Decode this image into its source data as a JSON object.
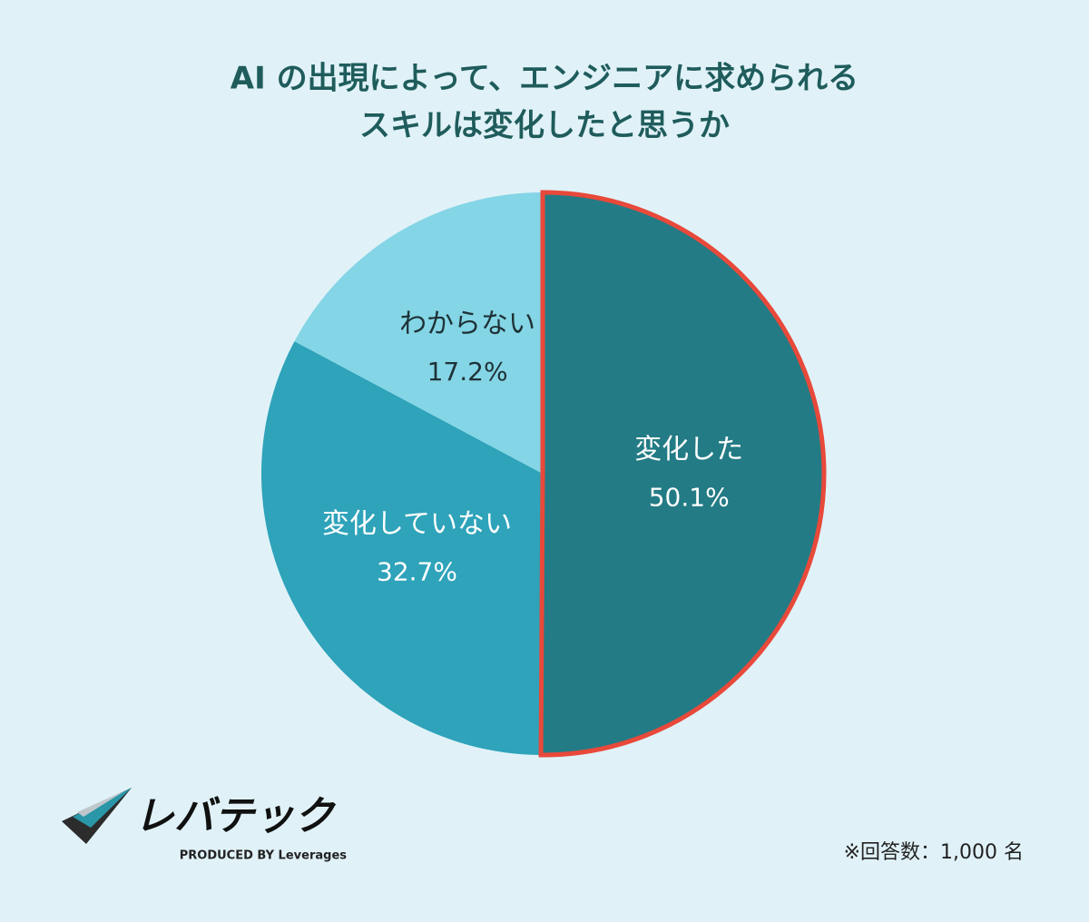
{
  "chart_data": {
    "type": "pie",
    "title": [
      "AI の出現によって、エンジニアに求められる",
      "スキルは変化したと思うか"
    ],
    "categories": [
      "変化した",
      "変化していない",
      "わからない"
    ],
    "values": [
      50.1,
      32.7,
      17.2
    ],
    "value_labels": [
      "50.1%",
      "32.7%",
      "17.2%"
    ],
    "colors": [
      "#237b85",
      "#2ea3ba",
      "#84d5e5"
    ],
    "label_colors": [
      "#ffffff",
      "#ffffff",
      "#1e3237"
    ],
    "highlight": {
      "index": 0,
      "color": "#e8493a"
    }
  },
  "footnote": "※回答数：1,000 名",
  "logo": {
    "name": "レバテック",
    "tagline": "PRODUCED BY Leverages"
  }
}
